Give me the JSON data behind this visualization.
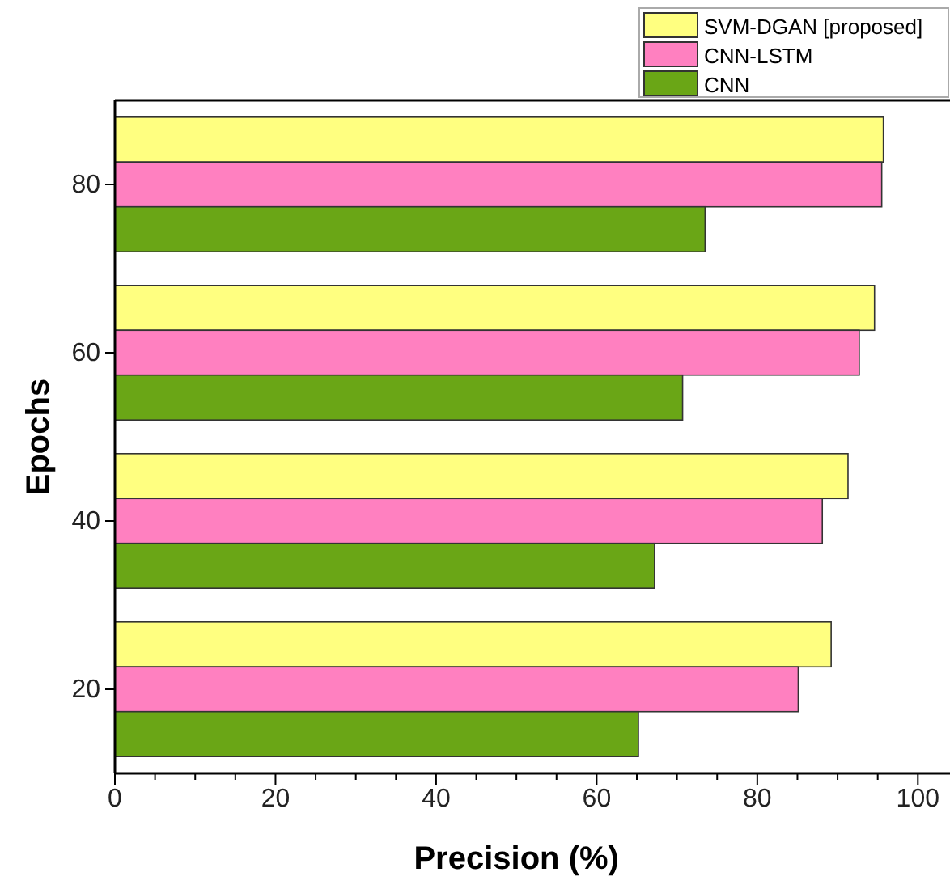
{
  "chart_data": {
    "type": "bar",
    "orientation": "horizontal",
    "xlabel": "Precision (%)",
    "ylabel": "Epochs",
    "categories": [
      "80",
      "60",
      "40",
      "20"
    ],
    "series": [
      {
        "name": "SVM-DGAN [proposed]",
        "color": "#ffff80",
        "values": [
          95.7,
          94.6,
          91.3,
          89.2
        ]
      },
      {
        "name": "CNN-LSTM",
        "color": "#ff80c0",
        "values": [
          95.5,
          92.7,
          88.1,
          85.1
        ]
      },
      {
        "name": "CNN",
        "color": "#6aa616",
        "values": [
          73.5,
          70.7,
          67.2,
          65.2
        ]
      }
    ],
    "xlim": [
      0,
      104
    ],
    "xticks": [
      0,
      {
        "value": 5,
        "label": null
      },
      {
        "value": 10,
        "label": null
      },
      {
        "value": 15,
        "label": null
      },
      20,
      {
        "value": 25,
        "label": null
      },
      {
        "value": 30,
        "label": null
      },
      {
        "value": 35,
        "label": null
      },
      40,
      {
        "value": 45,
        "label": null
      },
      {
        "value": 50,
        "label": null
      },
      {
        "value": 55,
        "label": null
      },
      60,
      {
        "value": 65,
        "label": null
      },
      {
        "value": 70,
        "label": null
      },
      {
        "value": 75,
        "label": null
      },
      80,
      {
        "value": 85,
        "label": null
      },
      {
        "value": 90,
        "label": null
      },
      {
        "value": 95,
        "label": null
      },
      100
    ],
    "legend": "top right"
  }
}
